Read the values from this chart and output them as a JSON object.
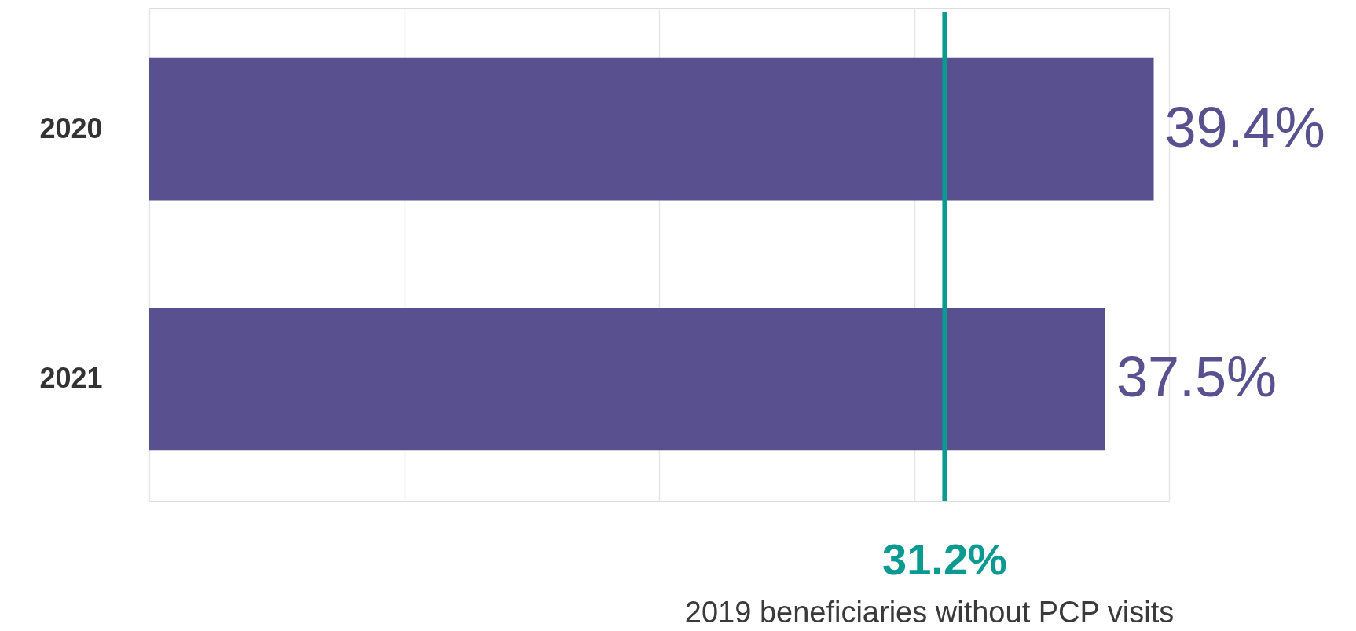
{
  "chart_data": {
    "type": "bar",
    "orientation": "horizontal",
    "categories": [
      "2020",
      "2021"
    ],
    "values": [
      39.4,
      37.5
    ],
    "color": "#58508f",
    "value_labels": [
      "39.4%",
      "37.5%"
    ],
    "xlim": [
      0,
      40
    ],
    "xticks": [
      {
        "value": 0,
        "label": null
      },
      {
        "value": 10,
        "label": null
      },
      {
        "value": 20,
        "label": null
      },
      {
        "value": 30,
        "label": null
      },
      {
        "value": 40,
        "label": null
      }
    ],
    "grid": "x",
    "tick_labels": "y",
    "ref_lines": [
      {
        "axis": "x",
        "value": 31.2,
        "label": "31.2%",
        "color": "#0a9a92"
      }
    ],
    "annotations": [
      "2019 beneficiaries without PCP visits"
    ]
  }
}
